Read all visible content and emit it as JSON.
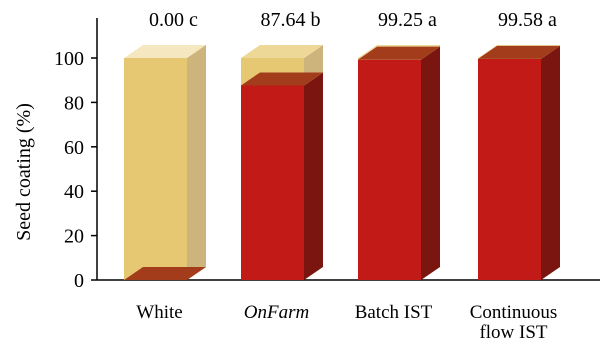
{
  "chart_data": {
    "type": "bar",
    "style": "3d-stacked",
    "ylabel": "Seed coating (%)",
    "xlabel": "",
    "ylim": [
      0,
      100
    ],
    "yticks": [
      0,
      20,
      40,
      60,
      80,
      100
    ],
    "grid": false,
    "categories": [
      {
        "lines": [
          "White"
        ],
        "italic": false
      },
      {
        "lines": [
          "OnFarm"
        ],
        "italic": true
      },
      {
        "lines": [
          "Batch IST"
        ],
        "italic": false
      },
      {
        "lines": [
          "Continuous",
          "flow IST"
        ],
        "italic": false
      }
    ],
    "series": [
      {
        "values": [
          0,
          87.64,
          99.25,
          99.58
        ]
      },
      {
        "values": [
          100,
          12.36,
          0.75,
          0.42
        ]
      }
    ],
    "data_labels": [
      "0.00 c",
      "87.64 b",
      "99.25 a",
      "99.58 a"
    ],
    "colors": {
      "coated_front": "#c21a17",
      "coated_side": "#7a1510",
      "coated_top": "#a33c1a",
      "uncoated_front": "#e6c873",
      "uncoated_side": "#c9b075",
      "uncoated_top": "#eed898",
      "axis": "#000000"
    }
  }
}
